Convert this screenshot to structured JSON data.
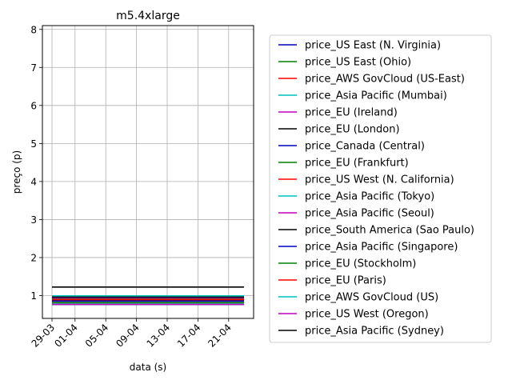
{
  "chart_data": {
    "type": "line",
    "title": "m5.4xlarge",
    "xlabel": "data (s)",
    "ylabel": "preço (p)",
    "x_range": [
      "2018-03-29",
      "2018-04-23"
    ],
    "x_ticks": [
      {
        "date": "2018-03-29",
        "label": "29-03"
      },
      {
        "date": "2018-04-01",
        "label": "01-04"
      },
      {
        "date": "2018-04-05",
        "label": "05-04"
      },
      {
        "date": "2018-04-09",
        "label": "09-04"
      },
      {
        "date": "2018-04-13",
        "label": "13-04"
      },
      {
        "date": "2018-04-17",
        "label": "17-04"
      },
      {
        "date": "2018-04-21",
        "label": "21-04"
      }
    ],
    "ylim": [
      0.4,
      8.1
    ],
    "y_ticks": [
      1,
      2,
      3,
      4,
      5,
      6,
      7,
      8
    ],
    "grid": true,
    "legend_position": "outside-right",
    "series": [
      {
        "name": "price_US East (N. Virginia)",
        "color": "#0000bf",
        "values": [
          0.768,
          0.768
        ]
      },
      {
        "name": "price_US East (Ohio)",
        "color": "#008000",
        "values": [
          0.768,
          0.768
        ]
      },
      {
        "name": "price_AWS GovCloud (US-East)",
        "color": "#ff0000",
        "values": [
          0.968,
          0.968
        ]
      },
      {
        "name": "price_Asia Pacific (Mumbai)",
        "color": "#00bfbf",
        "values": [
          0.808,
          0.808
        ]
      },
      {
        "name": "price_EU (Ireland)",
        "color": "#bf00bf",
        "values": [
          0.856,
          0.856
        ]
      },
      {
        "name": "price_EU (London)",
        "color": "#000000",
        "values": [
          0.888,
          0.888
        ]
      },
      {
        "name": "price_Canada (Central)",
        "color": "#0000bf",
        "values": [
          0.856,
          0.856
        ]
      },
      {
        "name": "price_EU (Frankfurt)",
        "color": "#008000",
        "values": [
          0.92,
          0.92
        ]
      },
      {
        "name": "price_US West (N. California)",
        "color": "#ff0000",
        "values": [
          0.896,
          0.896
        ]
      },
      {
        "name": "price_Asia Pacific (Tokyo)",
        "color": "#00bfbf",
        "values": [
          0.992,
          0.992
        ]
      },
      {
        "name": "price_Asia Pacific (Seoul)",
        "color": "#bf00bf",
        "values": [
          0.944,
          0.944
        ]
      },
      {
        "name": "price_South America (Sao Paulo)",
        "color": "#000000",
        "values": [
          1.224,
          1.224
        ]
      },
      {
        "name": "price_Asia Pacific (Singapore)",
        "color": "#0000bf",
        "values": [
          0.96,
          0.96
        ]
      },
      {
        "name": "price_EU (Stockholm)",
        "color": "#008000",
        "values": [
          0.816,
          0.816
        ]
      },
      {
        "name": "price_EU (Paris)",
        "color": "#ff0000",
        "values": [
          0.896,
          0.896
        ]
      },
      {
        "name": "price_AWS GovCloud (US)",
        "color": "#00bfbf",
        "values": [
          0.968,
          0.968
        ]
      },
      {
        "name": "price_US West (Oregon)",
        "color": "#bf00bf",
        "values": [
          0.768,
          0.768
        ]
      },
      {
        "name": "price_Asia Pacific (Sydney)",
        "color": "#000000",
        "values": [
          0.96,
          0.96
        ]
      }
    ]
  }
}
